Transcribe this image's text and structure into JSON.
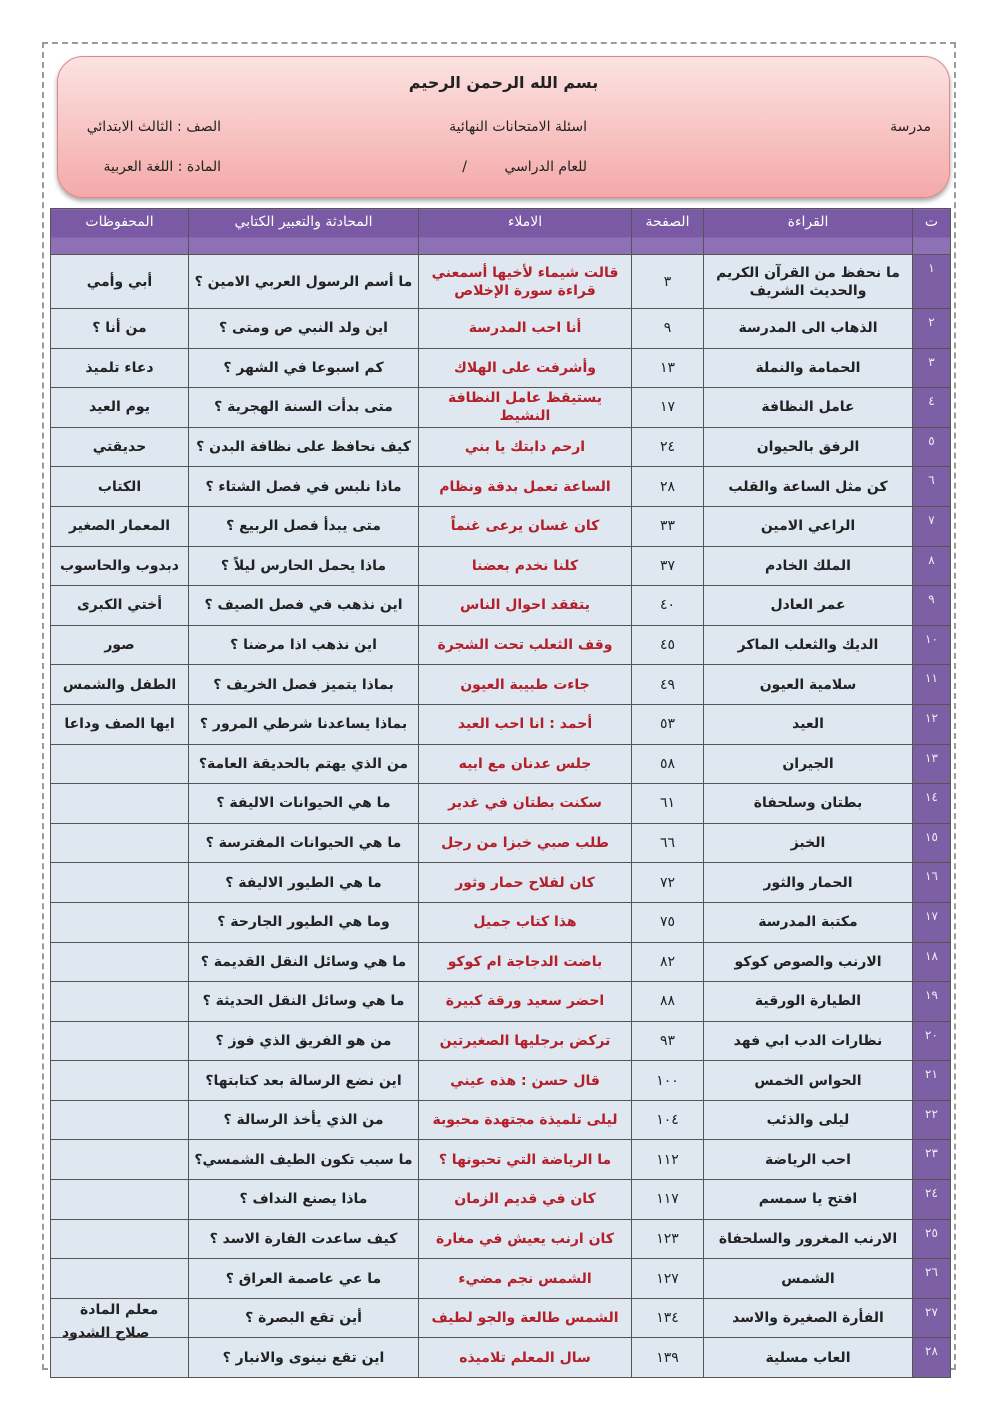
{
  "header": {
    "basmala": "بسم الله الرحمن الرحيم",
    "school": "مدرسة",
    "exam_title": "اسئلة الامتحانات النهائية",
    "grade": "الصف : الثالث الابتدائي",
    "year_label": "للعام الدراسي",
    "year_sep": "/",
    "subject": "المادة : اللغة العربية"
  },
  "table": {
    "columns": [
      "ت",
      "القراءة",
      "الصفحة",
      "الاملاء",
      "المحادثة والتعبير الكتابي",
      "المحفوظات"
    ],
    "rows": [
      [
        "١",
        "ما نحفظ من القرآن الكريم والحديث الشريف",
        "٣",
        "قالت شيماء لأخيها أسمعني قراءة سورة الإخلاص",
        "ما أسم الرسول العربي الامين ؟",
        "أبي وأمي"
      ],
      [
        "٢",
        "الذهاب الى المدرسة",
        "٩",
        "أنا احب المدرسة",
        "اين ولد النبي ص ومتى ؟",
        "من أنا ؟"
      ],
      [
        "٣",
        "الحمامة  والنملة",
        "١٣",
        "وأشرفت على الهلاك",
        "كم اسبوعا في الشهر ؟",
        "دعاء تلميذ"
      ],
      [
        "٤",
        "عامل النظافة",
        "١٧",
        "يستيقظ عامل النظافة النشيط",
        "متى بدأت السنة الهجرية ؟",
        "يوم العيد"
      ],
      [
        "٥",
        "الرفق بالحيوان",
        "٢٤",
        "ارحم دابتك يا بني",
        "كيف نحافظ على نظافة البدن ؟",
        "حديقتي"
      ],
      [
        "٦",
        "كن مثل الساعة والقلب",
        "٢٨",
        "الساعة تعمل بدقة ونظام",
        "ماذا نلبس في فصل الشتاء ؟",
        "الكتاب"
      ],
      [
        "٧",
        "الراعي الامين",
        "٣٣",
        "كان غسان يرعى غنماً",
        "متى يبدأ فصل الربيع ؟",
        "المعمار الصغير"
      ],
      [
        "٨",
        "الملك الخادم",
        "٣٧",
        "كلنا نخدم بعضنا",
        "ماذا يحمل الحارس ليلاً ؟",
        "دبدوب والحاسوب"
      ],
      [
        "٩",
        "عمر العادل",
        "٤٠",
        "يتفقد احوال الناس",
        "اين نذهب في فصل الصيف ؟",
        "أختي الكبرى"
      ],
      [
        "١٠",
        "الديك والثعلب الماكر",
        "٤٥",
        "وقف الثعلب تحت الشجرة",
        "اين نذهب اذا مرضنا ؟",
        "صور"
      ],
      [
        "١١",
        "سلامية العيون",
        "٤٩",
        "جاءت طبيبة العيون",
        "بماذا يتميز فصل الخريف ؟",
        "الطفل والشمس"
      ],
      [
        "١٢",
        "العيد",
        "٥٣",
        "أحمد : انا احب العيد",
        "بماذا يساعدنا شرطي المرور ؟",
        "ايها الصف وداعا"
      ],
      [
        "١٣",
        "الجيران",
        "٥٨",
        "جلس عدنان مع ابيه",
        "من الذي يهتم بالحديقة العامة؟",
        ""
      ],
      [
        "١٤",
        "بطتان وسلحفاة",
        "٦١",
        "سكنت بطتان في غدير",
        "ما هي الحيوانات الاليفة ؟",
        ""
      ],
      [
        "١٥",
        "الخبز",
        "٦٦",
        "طلب صبي خبزا من رجل",
        "ما هي الحيوانات المفترسة ؟",
        ""
      ],
      [
        "١٦",
        "الحمار والثور",
        "٧٢",
        "كان لفلاح حمار وثور",
        "ما هي الطيور الاليفة ؟",
        ""
      ],
      [
        "١٧",
        "مكتبة المدرسة",
        "٧٥",
        "هذا كتاب جميل",
        "وما هي الطيور الجارحة ؟",
        ""
      ],
      [
        "١٨",
        "الارنب والصوص كوكو",
        "٨٢",
        "باضت الدجاجة ام كوكو",
        "ما هي وسائل النقل القديمة ؟",
        ""
      ],
      [
        "١٩",
        "الطيارة الورقية",
        "٨٨",
        "احضر سعيد ورقة كبيرة",
        "ما هي وسائل النقل الحديثة ؟",
        ""
      ],
      [
        "٢٠",
        "نظارات الدب ابي فهد",
        "٩٣",
        "تركض برجليها الصغيرتين",
        "من هو الفريق الذي فوز ؟",
        ""
      ],
      [
        "٢١",
        "الحواس الخمس",
        "١٠٠",
        "قال حسن : هذه عيني",
        "اين نضع الرسالة بعد كتابتها؟",
        ""
      ],
      [
        "٢٢",
        "ليلى والذئب",
        "١٠٤",
        "ليلى تلميذة مجتهدة محبوبة",
        "من الذي يأخذ الرسالة ؟",
        ""
      ],
      [
        "٢٣",
        "احب الرياضة",
        "١١٢",
        "ما الرياضة التي تحبونها ؟",
        "ما سبب تكون الطيف الشمسي؟",
        ""
      ],
      [
        "٢٤",
        "افتح يا سمسم",
        "١١٧",
        "كان في قديم الزمان",
        "ماذا يصنع النداف ؟",
        ""
      ],
      [
        "٢٥",
        "الارنب المغرور والسلحفاة",
        "١٢٣",
        "كان ارنب يعيش في مغارة",
        "كيف ساعدت الفارة الاسد ؟",
        ""
      ],
      [
        "٢٦",
        "الشمس",
        "١٢٧",
        "الشمس نجم مضيء",
        "ما عي عاصمة العراق ؟",
        ""
      ],
      [
        "٢٧",
        "الفأرة الصغيرة والاسد",
        "١٣٤",
        "الشمس طالعة والجو لطيف",
        "أين تقع البصرة ؟",
        ""
      ],
      [
        "٢٨",
        "العاب مسلية",
        "١٣٩",
        "سال المعلم تلاميذه",
        "اين تقع نينوى والانبار ؟",
        ""
      ]
    ]
  },
  "footer": {
    "teacher_label": "معلم المادة",
    "teacher_name": "صلاح الشدود"
  },
  "colors": {
    "header_purple": "#7d5fa6",
    "cell_blue": "#dfe7f1",
    "dictation_red": "#b3202a",
    "banner_pink": "#f4a9a9"
  }
}
